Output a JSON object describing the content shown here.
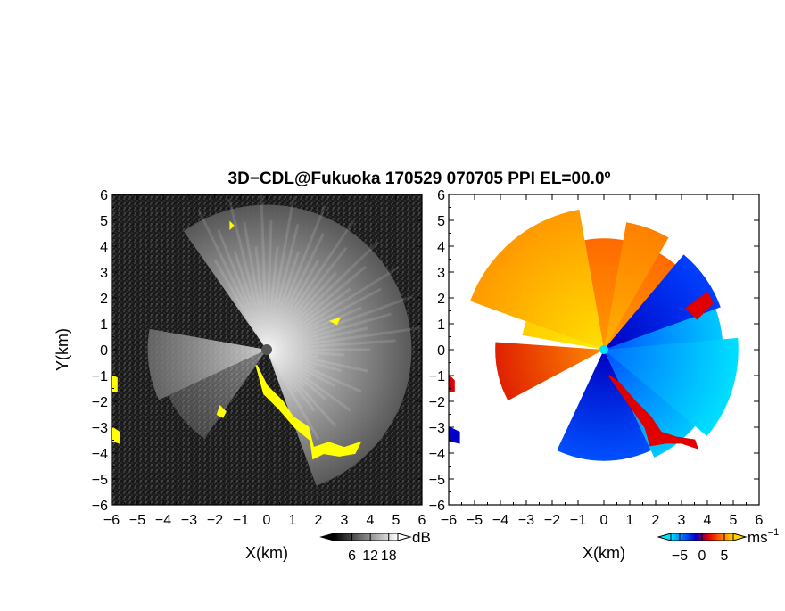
{
  "title": "3D−CDL@Fukuoka 170529 070705 PPI EL=00.0º",
  "chart_data": [
    {
      "type": "heatmap",
      "name": "reflectivity-ppi",
      "xlabel": "X(km)",
      "ylabel": "Y(km)",
      "xlim": [
        -6,
        6
      ],
      "ylim": [
        -6,
        6
      ],
      "x_ticks": [
        "−6",
        "−5",
        "−4",
        "−3",
        "−2",
        "−1",
        "0",
        "1",
        "2",
        "3",
        "4",
        "5",
        "6"
      ],
      "y_ticks": [
        "−6",
        "−5",
        "−4",
        "−3",
        "−2",
        "−1",
        "0",
        "1",
        "2",
        "3",
        "4",
        "5",
        "6"
      ],
      "x_tick_values": [
        -6,
        -5,
        -4,
        -3,
        -2,
        -1,
        0,
        1,
        2,
        3,
        4,
        5,
        6
      ],
      "y_tick_values": [
        -6,
        -5,
        -4,
        -3,
        -2,
        -1,
        0,
        1,
        2,
        3,
        4,
        5,
        6
      ],
      "colorbar": {
        "unit": "dB",
        "tick_labels": [
          "6",
          "12",
          "18"
        ],
        "tick_values": [
          6,
          12,
          18
        ],
        "range": [
          0,
          21
        ],
        "colors": [
          "#000000",
          "#ffffff"
        ]
      },
      "highlight_color": "#ffff00",
      "highlight_regions": [
        {
          "points": [
            [
              -0.4,
              -0.6
            ],
            [
              0.0,
              -1.4
            ],
            [
              0.6,
              -2.0
            ],
            [
              1.0,
              -2.6
            ],
            [
              1.6,
              -3.0
            ],
            [
              1.8,
              -3.8
            ],
            [
              2.4,
              -3.6
            ],
            [
              3.0,
              -3.8
            ],
            [
              3.6,
              -3.6
            ],
            [
              3.4,
              -4.0
            ],
            [
              2.8,
              -4.1
            ],
            [
              2.2,
              -4.0
            ],
            [
              1.8,
              -4.2
            ],
            [
              1.7,
              -3.5
            ],
            [
              1.1,
              -3.0
            ],
            [
              0.5,
              -2.3
            ],
            [
              -0.1,
              -1.7
            ]
          ]
        },
        {
          "points": [
            [
              -6.0,
              -1.0
            ],
            [
              -5.8,
              -1.1
            ],
            [
              -5.8,
              -1.6
            ],
            [
              -6.0,
              -1.6
            ]
          ]
        },
        {
          "points": [
            [
              -6.0,
              -3.0
            ],
            [
              -5.7,
              -3.2
            ],
            [
              -5.7,
              -3.6
            ],
            [
              -6.0,
              -3.5
            ]
          ]
        },
        {
          "points": [
            [
              -1.8,
              -2.2
            ],
            [
              -1.6,
              -2.4
            ],
            [
              -1.7,
              -2.6
            ],
            [
              -1.9,
              -2.5
            ]
          ]
        },
        {
          "points": [
            [
              -1.4,
              4.9
            ],
            [
              -1.3,
              4.8
            ],
            [
              -1.4,
              4.7
            ]
          ]
        },
        {
          "points": [
            [
              2.5,
              1.1
            ],
            [
              2.8,
              1.2
            ],
            [
              2.7,
              1.0
            ]
          ]
        }
      ]
    },
    {
      "type": "heatmap",
      "name": "doppler-velocity-ppi",
      "xlabel": "X(km)",
      "xlim": [
        -6,
        6
      ],
      "ylim": [
        -6,
        6
      ],
      "x_ticks": [
        "−6",
        "−5",
        "−4",
        "−3",
        "−2",
        "−1",
        "0",
        "1",
        "2",
        "3",
        "4",
        "5",
        "6"
      ],
      "y_ticks": [
        "−6",
        "−5",
        "−4",
        "−3",
        "−2",
        "−1",
        "0",
        "1",
        "2",
        "3",
        "4",
        "5",
        "6"
      ],
      "x_tick_values": [
        -6,
        -5,
        -4,
        -3,
        -2,
        -1,
        0,
        1,
        2,
        3,
        4,
        5,
        6
      ],
      "y_tick_values": [
        -6,
        -5,
        -4,
        -3,
        -2,
        -1,
        0,
        1,
        2,
        3,
        4,
        5,
        6
      ],
      "colorbar": {
        "unit": "ms",
        "unit_exponent": "−1",
        "tick_labels": [
          "−5",
          "0",
          "5"
        ],
        "tick_values": [
          -5,
          0,
          5
        ],
        "range": [
          -7,
          7
        ],
        "colors": [
          "#00e5ff",
          "#0066ff",
          "#0000c8",
          "#e00000",
          "#ff6a00",
          "#ffd400"
        ]
      },
      "sectors": [
        {
          "from_deg": 100,
          "to_deg": 160,
          "radius_km": 5.5,
          "colors": [
            "#ffe000",
            "#ff9900"
          ]
        },
        {
          "from_deg": 160,
          "to_deg": 170,
          "radius_km": 3.2,
          "colors": [
            "#ffee00",
            "#ffcc00"
          ]
        },
        {
          "from_deg": 176,
          "to_deg": 208,
          "radius_km": 4.2,
          "colors": [
            "#ff8a00",
            "#e02000"
          ]
        },
        {
          "from_deg": 40,
          "to_deg": 100,
          "radius_km": 4.3,
          "colors": [
            "#ff9a00",
            "#ff6a00"
          ]
        },
        {
          "from_deg": 60,
          "to_deg": 80,
          "radius_km": 5.0,
          "colors": [
            "#ffb000",
            "#ff8000"
          ]
        },
        {
          "from_deg": -65,
          "to_deg": 30,
          "radius_km": 4.6,
          "colors": [
            "#0050ff",
            "#00c8ff"
          ]
        },
        {
          "from_deg": -40,
          "to_deg": 5,
          "radius_km": 5.2,
          "colors": [
            "#0070ff",
            "#00e0ff"
          ]
        },
        {
          "from_deg": 20,
          "to_deg": 50,
          "radius_km": 4.8,
          "colors": [
            "#0000c0",
            "#0040ff"
          ]
        },
        {
          "from_deg": -115,
          "to_deg": -65,
          "radius_km": 4.3,
          "colors": [
            "#0000c0",
            "#0050ff"
          ]
        }
      ],
      "edge_regions": [
        {
          "points": [
            [
              0.2,
              -1.0
            ],
            [
              0.9,
              -2.0
            ],
            [
              1.6,
              -3.0
            ],
            [
              1.8,
              -3.7
            ],
            [
              2.4,
              -3.6
            ],
            [
              3.0,
              -3.6
            ],
            [
              3.6,
              -3.8
            ],
            [
              3.5,
              -3.5
            ],
            [
              2.8,
              -3.4
            ],
            [
              2.2,
              -3.2
            ],
            [
              1.8,
              -2.6
            ],
            [
              1.2,
              -2.0
            ],
            [
              0.6,
              -1.3
            ]
          ],
          "color": "#e00000"
        },
        {
          "points": [
            [
              3.2,
              1.6
            ],
            [
              4.0,
              2.2
            ],
            [
              4.2,
              1.8
            ],
            [
              3.6,
              1.2
            ]
          ],
          "color": "#e00000"
        },
        {
          "points": [
            [
              -6.0,
              -1.0
            ],
            [
              -5.8,
              -1.2
            ],
            [
              -5.8,
              -1.6
            ],
            [
              -6.0,
              -1.6
            ]
          ],
          "color": "#e00000"
        },
        {
          "points": [
            [
              -6.0,
              -3.0
            ],
            [
              -5.6,
              -3.2
            ],
            [
              -5.6,
              -3.6
            ],
            [
              -6.0,
              -3.5
            ]
          ],
          "color": "#0000c8"
        }
      ]
    }
  ]
}
